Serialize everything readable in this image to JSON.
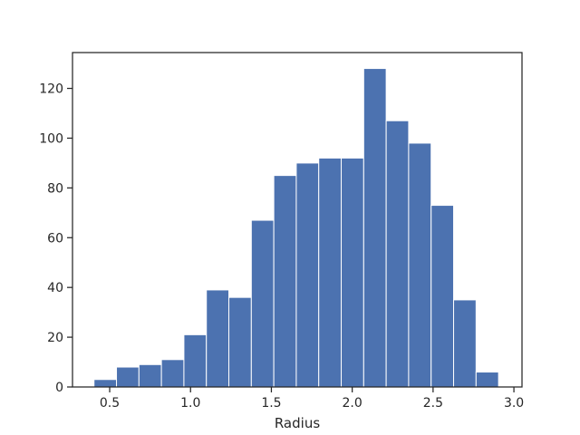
{
  "chart_data": {
    "type": "bar",
    "subtype": "histogram",
    "title": "",
    "xlabel": "Radius",
    "ylabel": "",
    "xlim": [
      0.27,
      3.05
    ],
    "ylim": [
      0,
      134.4
    ],
    "xticks": [
      0.5,
      1.0,
      1.5,
      2.0,
      2.5,
      3.0
    ],
    "xtick_labels": [
      "0.5",
      "1.0",
      "1.5",
      "2.0",
      "2.5",
      "3.0"
    ],
    "yticks": [
      0,
      20,
      40,
      60,
      80,
      100,
      120
    ],
    "ytick_labels": [
      "0",
      "20",
      "40",
      "60",
      "80",
      "100",
      "120"
    ],
    "grid": false,
    "bar_color": "#4c72b0",
    "bin_edges": [
      0.403,
      0.542,
      0.681,
      0.82,
      0.959,
      1.098,
      1.237,
      1.376,
      1.515,
      1.654,
      1.793,
      1.932,
      2.071,
      2.21,
      2.349,
      2.488,
      2.627,
      2.766,
      2.905
    ],
    "values": [
      3,
      8,
      9,
      11,
      21,
      39,
      36,
      67,
      85,
      90,
      92,
      92,
      128,
      107,
      98,
      73,
      35,
      6
    ]
  }
}
